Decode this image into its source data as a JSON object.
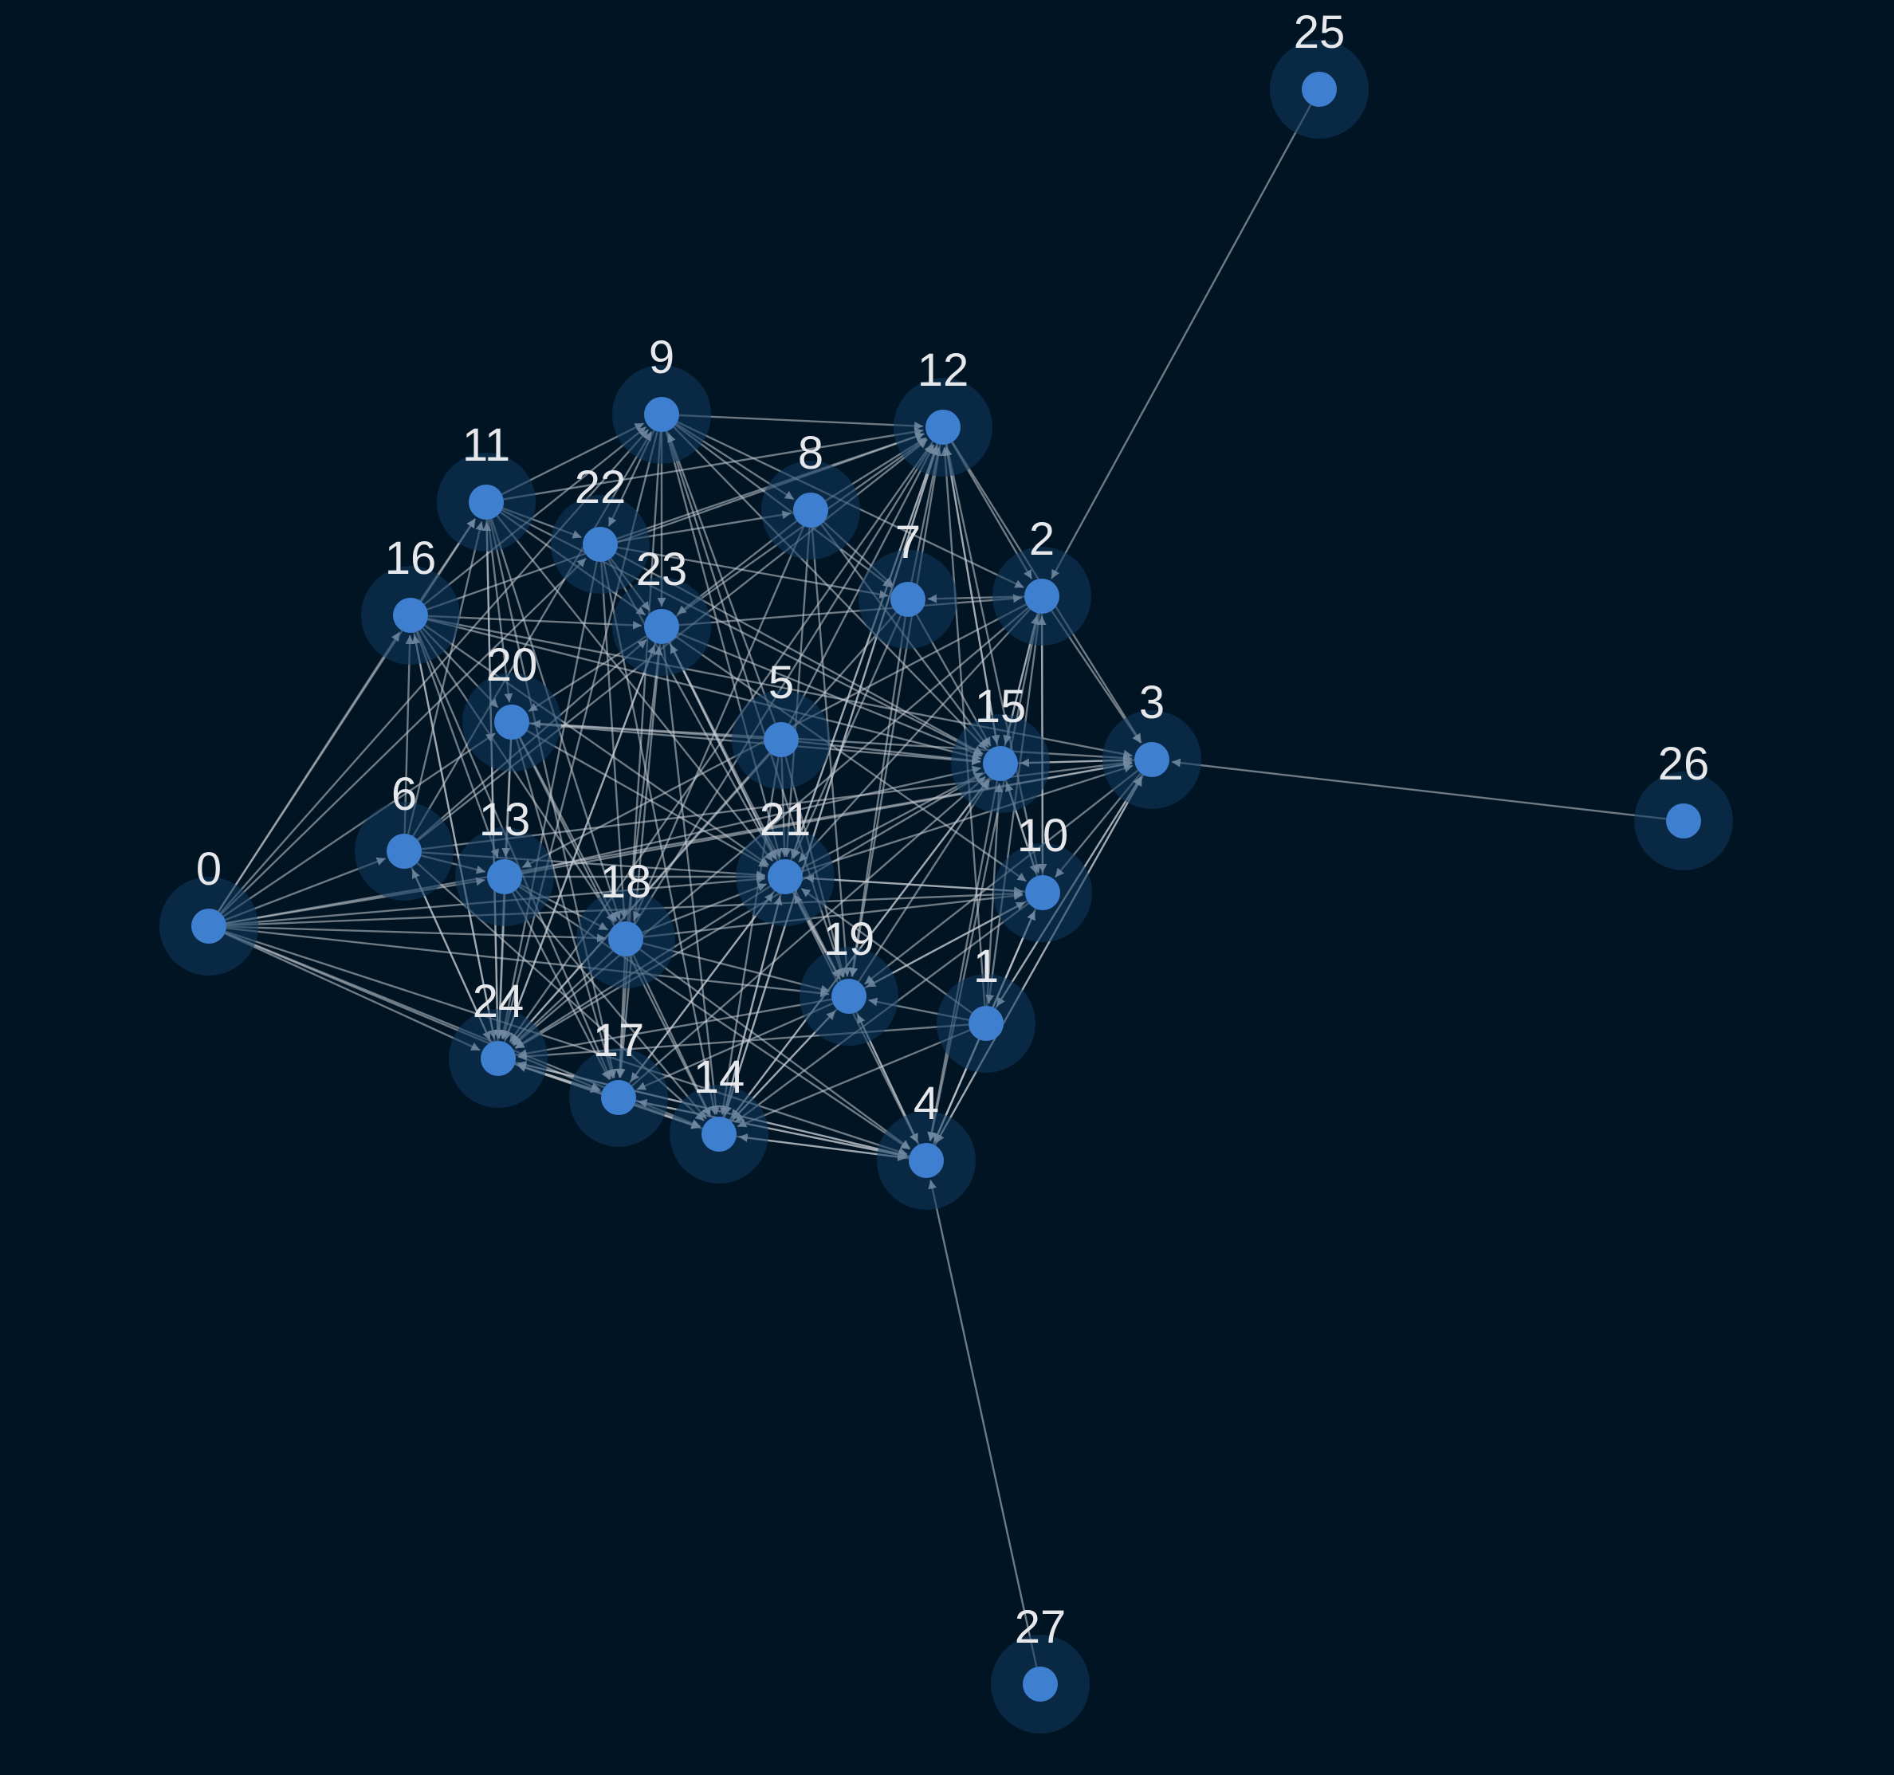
{
  "graph": {
    "type": "directed-network",
    "colors": {
      "background": "#011423",
      "node": "#3f7fcf",
      "halo": "#10385e",
      "edge": "#c9ced6",
      "label": "#e6e8ec"
    },
    "nodes": [
      {
        "id": "0"
      },
      {
        "id": "1"
      },
      {
        "id": "2"
      },
      {
        "id": "3"
      },
      {
        "id": "4"
      },
      {
        "id": "5"
      },
      {
        "id": "6"
      },
      {
        "id": "7"
      },
      {
        "id": "8"
      },
      {
        "id": "9"
      },
      {
        "id": "10"
      },
      {
        "id": "11"
      },
      {
        "id": "12"
      },
      {
        "id": "13"
      },
      {
        "id": "14"
      },
      {
        "id": "15"
      },
      {
        "id": "16"
      },
      {
        "id": "17"
      },
      {
        "id": "18"
      },
      {
        "id": "19"
      },
      {
        "id": "20"
      },
      {
        "id": "21"
      },
      {
        "id": "22"
      },
      {
        "id": "23"
      },
      {
        "id": "24"
      },
      {
        "id": "25"
      },
      {
        "id": "26"
      },
      {
        "id": "27"
      }
    ],
    "edges": [
      [
        "25",
        "2"
      ],
      [
        "26",
        "3"
      ],
      [
        "27",
        "4"
      ],
      [
        "0",
        "6"
      ],
      [
        "0",
        "16"
      ],
      [
        "0",
        "11"
      ],
      [
        "0",
        "24"
      ],
      [
        "0",
        "17"
      ],
      [
        "0",
        "14"
      ],
      [
        "0",
        "4"
      ],
      [
        "0",
        "13"
      ],
      [
        "0",
        "20"
      ],
      [
        "0",
        "18"
      ],
      [
        "0",
        "22"
      ],
      [
        "0",
        "9"
      ],
      [
        "0",
        "21"
      ],
      [
        "0",
        "19"
      ],
      [
        "0",
        "3"
      ],
      [
        "0",
        "10"
      ],
      [
        "6",
        "16"
      ],
      [
        "6",
        "24"
      ],
      [
        "6",
        "13"
      ],
      [
        "6",
        "11"
      ],
      [
        "6",
        "9"
      ],
      [
        "6",
        "23"
      ],
      [
        "6",
        "21"
      ],
      [
        "6",
        "14"
      ],
      [
        "6",
        "3"
      ],
      [
        "6",
        "12"
      ],
      [
        "16",
        "11"
      ],
      [
        "16",
        "9"
      ],
      [
        "16",
        "23"
      ],
      [
        "16",
        "20"
      ],
      [
        "16",
        "24"
      ],
      [
        "16",
        "13"
      ],
      [
        "16",
        "18"
      ],
      [
        "16",
        "17"
      ],
      [
        "16",
        "21"
      ],
      [
        "16",
        "15"
      ],
      [
        "16",
        "12"
      ],
      [
        "16",
        "3"
      ],
      [
        "11",
        "9"
      ],
      [
        "11",
        "22"
      ],
      [
        "11",
        "23"
      ],
      [
        "11",
        "20"
      ],
      [
        "11",
        "24"
      ],
      [
        "11",
        "18"
      ],
      [
        "11",
        "17"
      ],
      [
        "11",
        "21"
      ],
      [
        "11",
        "12"
      ],
      [
        "11",
        "15"
      ],
      [
        "9",
        "12"
      ],
      [
        "9",
        "8"
      ],
      [
        "9",
        "22"
      ],
      [
        "9",
        "23"
      ],
      [
        "9",
        "7"
      ],
      [
        "9",
        "2"
      ],
      [
        "9",
        "15"
      ],
      [
        "9",
        "21"
      ],
      [
        "9",
        "24"
      ],
      [
        "9",
        "17"
      ],
      [
        "9",
        "19"
      ],
      [
        "22",
        "12"
      ],
      [
        "22",
        "8"
      ],
      [
        "22",
        "23"
      ],
      [
        "22",
        "7"
      ],
      [
        "22",
        "15"
      ],
      [
        "22",
        "21"
      ],
      [
        "22",
        "24"
      ],
      [
        "22",
        "14"
      ],
      [
        "22",
        "18"
      ],
      [
        "8",
        "12"
      ],
      [
        "8",
        "7"
      ],
      [
        "8",
        "15"
      ],
      [
        "8",
        "23"
      ],
      [
        "8",
        "21"
      ],
      [
        "8",
        "19"
      ],
      [
        "8",
        "18"
      ],
      [
        "23",
        "12"
      ],
      [
        "23",
        "2"
      ],
      [
        "23",
        "20"
      ],
      [
        "23",
        "15"
      ],
      [
        "23",
        "21"
      ],
      [
        "23",
        "24"
      ],
      [
        "23",
        "17"
      ],
      [
        "23",
        "14"
      ],
      [
        "23",
        "19"
      ],
      [
        "23",
        "10"
      ],
      [
        "7",
        "12"
      ],
      [
        "7",
        "15"
      ],
      [
        "7",
        "21"
      ],
      [
        "7",
        "19"
      ],
      [
        "7",
        "24"
      ],
      [
        "12",
        "2"
      ],
      [
        "12",
        "3"
      ],
      [
        "12",
        "15"
      ],
      [
        "12",
        "10"
      ],
      [
        "12",
        "21"
      ],
      [
        "12",
        "19"
      ],
      [
        "12",
        "24"
      ],
      [
        "12",
        "14"
      ],
      [
        "2",
        "3"
      ],
      [
        "2",
        "15"
      ],
      [
        "2",
        "10"
      ],
      [
        "2",
        "1"
      ],
      [
        "2",
        "4"
      ],
      [
        "2",
        "21"
      ],
      [
        "2",
        "24"
      ],
      [
        "2",
        "13"
      ],
      [
        "2",
        "7"
      ],
      [
        "5",
        "21"
      ],
      [
        "5",
        "15"
      ],
      [
        "5",
        "24"
      ],
      [
        "5",
        "14"
      ],
      [
        "5",
        "19"
      ],
      [
        "5",
        "20"
      ],
      [
        "5",
        "12"
      ],
      [
        "5",
        "9"
      ],
      [
        "20",
        "24"
      ],
      [
        "20",
        "13"
      ],
      [
        "20",
        "18"
      ],
      [
        "20",
        "21"
      ],
      [
        "20",
        "17"
      ],
      [
        "20",
        "14"
      ],
      [
        "20",
        "15"
      ],
      [
        "20",
        "3"
      ],
      [
        "13",
        "24"
      ],
      [
        "13",
        "17"
      ],
      [
        "13",
        "18"
      ],
      [
        "13",
        "14"
      ],
      [
        "13",
        "21"
      ],
      [
        "13",
        "4"
      ],
      [
        "13",
        "3"
      ],
      [
        "13",
        "15"
      ],
      [
        "18",
        "24"
      ],
      [
        "18",
        "17"
      ],
      [
        "18",
        "14"
      ],
      [
        "18",
        "21"
      ],
      [
        "18",
        "19"
      ],
      [
        "18",
        "4"
      ],
      [
        "18",
        "10"
      ],
      [
        "18",
        "23"
      ],
      [
        "18",
        "12"
      ],
      [
        "21",
        "15"
      ],
      [
        "21",
        "3"
      ],
      [
        "21",
        "10"
      ],
      [
        "21",
        "19"
      ],
      [
        "21",
        "4"
      ],
      [
        "21",
        "14"
      ],
      [
        "21",
        "17"
      ],
      [
        "21",
        "24"
      ],
      [
        "21",
        "23"
      ],
      [
        "21",
        "12"
      ],
      [
        "15",
        "3"
      ],
      [
        "15",
        "10"
      ],
      [
        "15",
        "2"
      ],
      [
        "15",
        "4"
      ],
      [
        "15",
        "24"
      ],
      [
        "15",
        "14"
      ],
      [
        "15",
        "12"
      ],
      [
        "3",
        "10"
      ],
      [
        "3",
        "1"
      ],
      [
        "3",
        "4"
      ],
      [
        "3",
        "15"
      ],
      [
        "3",
        "19"
      ],
      [
        "10",
        "4"
      ],
      [
        "10",
        "19"
      ],
      [
        "10",
        "14"
      ],
      [
        "10",
        "21"
      ],
      [
        "10",
        "15"
      ],
      [
        "10",
        "2"
      ],
      [
        "19",
        "4"
      ],
      [
        "19",
        "14"
      ],
      [
        "19",
        "24"
      ],
      [
        "19",
        "17"
      ],
      [
        "19",
        "15"
      ],
      [
        "19",
        "21"
      ],
      [
        "19",
        "10"
      ],
      [
        "1",
        "4"
      ],
      [
        "1",
        "14"
      ],
      [
        "1",
        "10"
      ],
      [
        "1",
        "3"
      ],
      [
        "1",
        "19"
      ],
      [
        "1",
        "15"
      ],
      [
        "1",
        "21"
      ],
      [
        "1",
        "24"
      ],
      [
        "1",
        "12"
      ],
      [
        "24",
        "17"
      ],
      [
        "24",
        "14"
      ],
      [
        "24",
        "4"
      ],
      [
        "24",
        "16"
      ],
      [
        "24",
        "11"
      ],
      [
        "24",
        "23"
      ],
      [
        "24",
        "6"
      ],
      [
        "17",
        "14"
      ],
      [
        "17",
        "4"
      ],
      [
        "17",
        "24"
      ],
      [
        "17",
        "21"
      ],
      [
        "17",
        "15"
      ],
      [
        "14",
        "4"
      ],
      [
        "14",
        "24"
      ],
      [
        "14",
        "12"
      ],
      [
        "14",
        "15"
      ],
      [
        "14",
        "21"
      ],
      [
        "14",
        "19"
      ],
      [
        "4",
        "24"
      ],
      [
        "4",
        "17"
      ],
      [
        "4",
        "14"
      ],
      [
        "4",
        "10"
      ],
      [
        "4",
        "3"
      ],
      [
        "4",
        "19"
      ]
    ]
  }
}
